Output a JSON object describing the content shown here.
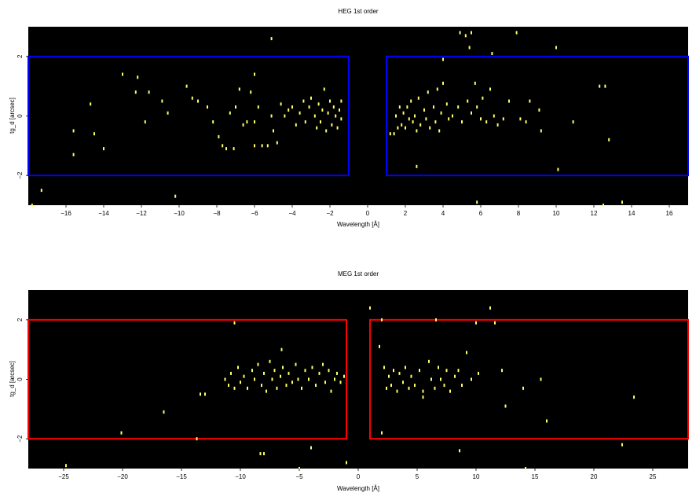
{
  "chart_data": [
    {
      "type": "scatter",
      "title": "HEG 1st order",
      "xlabel": "Wavelength [Å]",
      "ylabel": "tg_d [arcsec]",
      "xlim": [
        -18,
        17
      ],
      "ylim": [
        -3,
        3
      ],
      "xticks": [
        -16,
        -14,
        -12,
        -10,
        -8,
        -6,
        -4,
        -2,
        0,
        2,
        4,
        6,
        8,
        10,
        12,
        14,
        16
      ],
      "yticks": [
        -2,
        0,
        2
      ],
      "background": "#000000",
      "point_color": "#ffff66",
      "region_color": "#0000ff",
      "regions": [
        {
          "x0": -18,
          "x1": -1,
          "y0": -2,
          "y1": 2
        },
        {
          "x0": 1,
          "x1": 17,
          "y0": -2,
          "y1": 2
        }
      ],
      "points": [
        [
          -17.3,
          -2.5
        ],
        [
          -17.8,
          -3.0
        ],
        [
          -15.6,
          -0.5
        ],
        [
          -15.6,
          -1.3
        ],
        [
          -14.7,
          0.4
        ],
        [
          -14.5,
          -0.6
        ],
        [
          -14.0,
          -1.1
        ],
        [
          -13.0,
          1.4
        ],
        [
          -12.3,
          0.8
        ],
        [
          -12.2,
          1.3
        ],
        [
          -11.8,
          -0.2
        ],
        [
          -11.6,
          0.8
        ],
        [
          -10.9,
          0.5
        ],
        [
          -10.6,
          0.1
        ],
        [
          -9.6,
          1.0
        ],
        [
          -9.3,
          0.6
        ],
        [
          -9.0,
          0.5
        ],
        [
          -8.5,
          0.3
        ],
        [
          -8.2,
          -0.2
        ],
        [
          -7.9,
          -0.7
        ],
        [
          -7.7,
          -1.0
        ],
        [
          -7.5,
          -1.1
        ],
        [
          -7.3,
          0.1
        ],
        [
          -7.1,
          -1.1
        ],
        [
          -7.0,
          0.3
        ],
        [
          -6.8,
          0.9
        ],
        [
          -6.6,
          -0.3
        ],
        [
          -6.4,
          -0.2
        ],
        [
          -6.2,
          0.8
        ],
        [
          -6.0,
          1.4
        ],
        [
          -6.0,
          -0.2
        ],
        [
          -6.0,
          -1.0
        ],
        [
          -5.8,
          0.3
        ],
        [
          -5.6,
          -1.0
        ],
        [
          -5.3,
          -1.0
        ],
        [
          -5.1,
          0.0
        ],
        [
          -5.0,
          -0.5
        ],
        [
          -4.8,
          -0.9
        ],
        [
          -4.6,
          0.4
        ],
        [
          -4.4,
          0.0
        ],
        [
          -4.2,
          0.2
        ],
        [
          -4.0,
          0.3
        ],
        [
          -3.8,
          -0.3
        ],
        [
          -3.6,
          0.1
        ],
        [
          -3.4,
          0.5
        ],
        [
          -3.3,
          -0.2
        ],
        [
          -3.1,
          0.3
        ],
        [
          -3.0,
          0.6
        ],
        [
          -2.8,
          0.0
        ],
        [
          -2.7,
          -0.4
        ],
        [
          -2.6,
          0.4
        ],
        [
          -2.5,
          -0.2
        ],
        [
          -2.4,
          0.2
        ],
        [
          -2.3,
          0.9
        ],
        [
          -2.2,
          -0.5
        ],
        [
          -2.1,
          0.1
        ],
        [
          -2.0,
          0.5
        ],
        [
          -1.9,
          -0.3
        ],
        [
          -1.8,
          0.3
        ],
        [
          -1.7,
          0.0
        ],
        [
          -1.6,
          -0.4
        ],
        [
          -1.5,
          0.2
        ],
        [
          -1.4,
          -0.1
        ],
        [
          -1.4,
          0.5
        ],
        [
          -5.1,
          2.6
        ],
        [
          -10.2,
          -2.7
        ],
        [
          1.2,
          -0.6
        ],
        [
          1.4,
          -0.6
        ],
        [
          1.5,
          0.0
        ],
        [
          1.6,
          -0.4
        ],
        [
          1.7,
          0.3
        ],
        [
          1.8,
          -0.3
        ],
        [
          1.9,
          0.1
        ],
        [
          2.0,
          -0.4
        ],
        [
          2.1,
          0.3
        ],
        [
          2.2,
          -0.1
        ],
        [
          2.3,
          0.5
        ],
        [
          2.4,
          -0.2
        ],
        [
          2.5,
          0.0
        ],
        [
          2.6,
          -0.5
        ],
        [
          2.7,
          0.6
        ],
        [
          2.8,
          -0.3
        ],
        [
          3.0,
          0.2
        ],
        [
          3.1,
          -0.1
        ],
        [
          3.2,
          0.8
        ],
        [
          3.3,
          -0.4
        ],
        [
          3.5,
          0.3
        ],
        [
          3.6,
          -0.2
        ],
        [
          3.7,
          0.9
        ],
        [
          3.8,
          -0.5
        ],
        [
          3.9,
          0.1
        ],
        [
          4.0,
          1.1
        ],
        [
          4.2,
          0.4
        ],
        [
          4.3,
          -0.1
        ],
        [
          4.5,
          0.0
        ],
        [
          4.8,
          0.3
        ],
        [
          5.0,
          -0.2
        ],
        [
          5.3,
          0.5
        ],
        [
          5.5,
          0.1
        ],
        [
          5.7,
          1.1
        ],
        [
          5.8,
          0.3
        ],
        [
          6.0,
          -0.1
        ],
        [
          6.1,
          0.6
        ],
        [
          6.3,
          -0.2
        ],
        [
          6.5,
          0.9
        ],
        [
          6.7,
          0.0
        ],
        [
          6.9,
          -0.3
        ],
        [
          7.2,
          -0.1
        ],
        [
          7.5,
          0.5
        ],
        [
          8.1,
          -0.1
        ],
        [
          8.4,
          -0.2
        ],
        [
          8.6,
          0.5
        ],
        [
          9.1,
          0.2
        ],
        [
          9.2,
          -0.5
        ],
        [
          10.1,
          -1.8
        ],
        [
          10.9,
          -0.2
        ],
        [
          12.3,
          1.0
        ],
        [
          12.6,
          1.0
        ],
        [
          12.8,
          -0.8
        ],
        [
          13.5,
          -2.9
        ],
        [
          12.5,
          -3.0
        ],
        [
          4.0,
          1.9
        ],
        [
          5.2,
          2.7
        ],
        [
          5.5,
          2.8
        ],
        [
          6.6,
          2.1
        ],
        [
          7.9,
          2.8
        ],
        [
          5.4,
          2.3
        ],
        [
          10.0,
          2.3
        ],
        [
          2.6,
          -1.7
        ],
        [
          4.9,
          2.8
        ],
        [
          5.8,
          -2.9
        ]
      ]
    },
    {
      "type": "scatter",
      "title": "MEG 1st order",
      "xlabel": "Wavelength [Å]",
      "ylabel": "tg_d [arcsec]",
      "xlim": [
        -28,
        28
      ],
      "ylim": [
        -3,
        3
      ],
      "xticks": [
        -25,
        -20,
        -15,
        -10,
        -5,
        0,
        5,
        10,
        15,
        20,
        25
      ],
      "yticks": [
        -2,
        0,
        2
      ],
      "background": "#000000",
      "point_color": "#ffff66",
      "region_color": "#ff0000",
      "regions": [
        {
          "x0": -28,
          "x1": -1,
          "y0": -2,
          "y1": 2
        },
        {
          "x0": 1,
          "x1": 28,
          "y0": -2,
          "y1": 2
        }
      ],
      "points": [
        [
          -24.8,
          -2.9
        ],
        [
          -20.1,
          -1.8
        ],
        [
          -16.5,
          -1.1
        ],
        [
          -13.7,
          -2.0
        ],
        [
          -13.4,
          -0.5
        ],
        [
          -13.0,
          -0.5
        ],
        [
          -11.3,
          0.0
        ],
        [
          -11.0,
          -0.2
        ],
        [
          -10.8,
          0.2
        ],
        [
          -10.5,
          -0.3
        ],
        [
          -10.2,
          0.4
        ],
        [
          -10.0,
          -0.1
        ],
        [
          -9.7,
          0.1
        ],
        [
          -9.4,
          -0.3
        ],
        [
          -9.0,
          0.3
        ],
        [
          -8.8,
          0.0
        ],
        [
          -8.5,
          0.5
        ],
        [
          -8.2,
          -0.2
        ],
        [
          -8.0,
          0.2
        ],
        [
          -7.8,
          -0.4
        ],
        [
          -7.5,
          0.6
        ],
        [
          -7.3,
          0.0
        ],
        [
          -7.1,
          0.3
        ],
        [
          -6.9,
          -0.3
        ],
        [
          -6.6,
          0.1
        ],
        [
          -6.4,
          0.4
        ],
        [
          -6.1,
          -0.2
        ],
        [
          -5.9,
          0.2
        ],
        [
          -5.6,
          -0.1
        ],
        [
          -5.3,
          0.5
        ],
        [
          -5.1,
          0.0
        ],
        [
          -4.8,
          -0.3
        ],
        [
          -4.5,
          0.3
        ],
        [
          -4.2,
          0.0
        ],
        [
          -3.9,
          0.4
        ],
        [
          -3.6,
          -0.2
        ],
        [
          -3.3,
          0.2
        ],
        [
          -3.0,
          0.5
        ],
        [
          -2.8,
          -0.1
        ],
        [
          -2.5,
          0.3
        ],
        [
          -2.3,
          -0.4
        ],
        [
          -2.0,
          0.0
        ],
        [
          -1.8,
          0.2
        ],
        [
          -1.5,
          -0.1
        ],
        [
          -1.2,
          0.1
        ],
        [
          -6.5,
          1.0
        ],
        [
          -10.5,
          1.9
        ],
        [
          -8.3,
          -2.5
        ],
        [
          -8.0,
          -2.5
        ],
        [
          -5.0,
          -3.0
        ],
        [
          -1.0,
          -2.8
        ],
        [
          -4.0,
          -2.3
        ],
        [
          1.0,
          2.4
        ],
        [
          1.8,
          1.1
        ],
        [
          2.0,
          2.0
        ],
        [
          2.0,
          -1.8
        ],
        [
          2.2,
          0.4
        ],
        [
          2.4,
          -0.3
        ],
        [
          2.6,
          0.1
        ],
        [
          2.8,
          -0.2
        ],
        [
          3.0,
          0.3
        ],
        [
          3.3,
          -0.4
        ],
        [
          3.5,
          0.2
        ],
        [
          3.8,
          -0.1
        ],
        [
          4.0,
          0.4
        ],
        [
          4.3,
          -0.3
        ],
        [
          4.5,
          0.1
        ],
        [
          4.8,
          -0.2
        ],
        [
          5.2,
          0.3
        ],
        [
          5.5,
          -0.4
        ],
        [
          6.0,
          0.6
        ],
        [
          6.2,
          0.0
        ],
        [
          6.5,
          -0.3
        ],
        [
          6.8,
          0.4
        ],
        [
          7.0,
          0.0
        ],
        [
          7.3,
          -0.2
        ],
        [
          7.5,
          0.3
        ],
        [
          7.8,
          -0.4
        ],
        [
          8.2,
          0.1
        ],
        [
          8.5,
          0.3
        ],
        [
          8.8,
          -0.2
        ],
        [
          9.2,
          0.9
        ],
        [
          9.6,
          0.0
        ],
        [
          10.0,
          1.9
        ],
        [
          10.2,
          0.2
        ],
        [
          11.2,
          2.4
        ],
        [
          11.6,
          1.9
        ],
        [
          12.2,
          0.3
        ],
        [
          12.5,
          -0.9
        ],
        [
          14.0,
          -0.3
        ],
        [
          15.5,
          0.0
        ],
        [
          16.0,
          -1.4
        ],
        [
          22.4,
          -2.2
        ],
        [
          23.4,
          -0.6
        ],
        [
          6.6,
          2.0
        ],
        [
          5.5,
          -0.6
        ],
        [
          8.6,
          -2.4
        ],
        [
          14.2,
          -3.0
        ]
      ]
    }
  ]
}
